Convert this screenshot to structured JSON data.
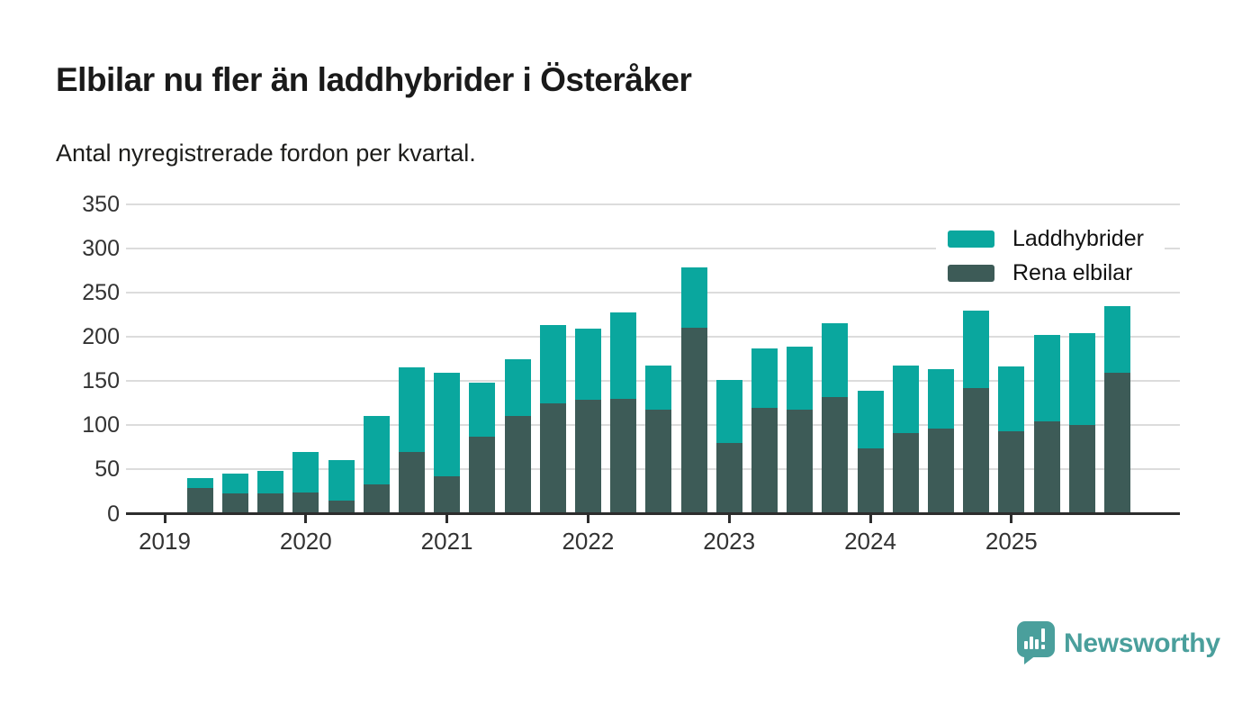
{
  "title": "Elbilar nu fler än laddhybrider i Österåker",
  "subtitle": "Antal nyregistrerade fordon per kvartal.",
  "legend": {
    "items": [
      {
        "label": "Laddhybrider",
        "color": "#0aa79e"
      },
      {
        "label": "Rena elbilar",
        "color": "#3d5b57"
      }
    ]
  },
  "footer": {
    "brand": "Newsworthy",
    "brand_color": "#4a9f9c"
  },
  "colors": {
    "laddhybrider": "#0aa79e",
    "rena_elbilar": "#3d5b57",
    "gridline": "#dcdcdc",
    "axis": "#2d2d2d",
    "text": "#333333"
  },
  "chart_data": {
    "type": "bar",
    "stacked": true,
    "title": "Elbilar nu fler än laddhybrider i Österåker",
    "subtitle": "Antal nyregistrerade fordon per kvartal.",
    "xlabel": "",
    "ylabel": "",
    "ylim": [
      0,
      350
    ],
    "grid": true,
    "legend_position": "top-right",
    "y_ticks": [
      0,
      50,
      100,
      150,
      200,
      250,
      300,
      350
    ],
    "x_tick_labels": [
      "2019",
      "2020",
      "2021",
      "2022",
      "2023",
      "2024",
      "2025"
    ],
    "categories": [
      "2019 Q2",
      "2019 Q3",
      "2019 Q4",
      "2020 Q1",
      "2020 Q2",
      "2020 Q3",
      "2020 Q4",
      "2021 Q1",
      "2021 Q2",
      "2021 Q3",
      "2021 Q4",
      "2022 Q1",
      "2022 Q2",
      "2022 Q3",
      "2022 Q4",
      "2023 Q1",
      "2023 Q2",
      "2023 Q3",
      "2023 Q4",
      "2024 Q1",
      "2024 Q2",
      "2024 Q3",
      "2024 Q4",
      "2025 Q1",
      "2025 Q2",
      "2025 Q3",
      "2025 Q4"
    ],
    "series": [
      {
        "name": "Rena elbilar",
        "color": "#3d5b57",
        "values": [
          29,
          23,
          23,
          24,
          15,
          33,
          70,
          42,
          87,
          110,
          125,
          129,
          130,
          118,
          210,
          80,
          120,
          118,
          132,
          74,
          91,
          96,
          142,
          93,
          104,
          100,
          159
        ]
      },
      {
        "name": "Laddhybrider",
        "color": "#0aa79e",
        "values": [
          11,
          22,
          25,
          46,
          46,
          77,
          95,
          117,
          61,
          64,
          88,
          80,
          97,
          49,
          68,
          71,
          67,
          71,
          83,
          65,
          76,
          67,
          87,
          73,
          98,
          104,
          76
        ]
      }
    ]
  }
}
